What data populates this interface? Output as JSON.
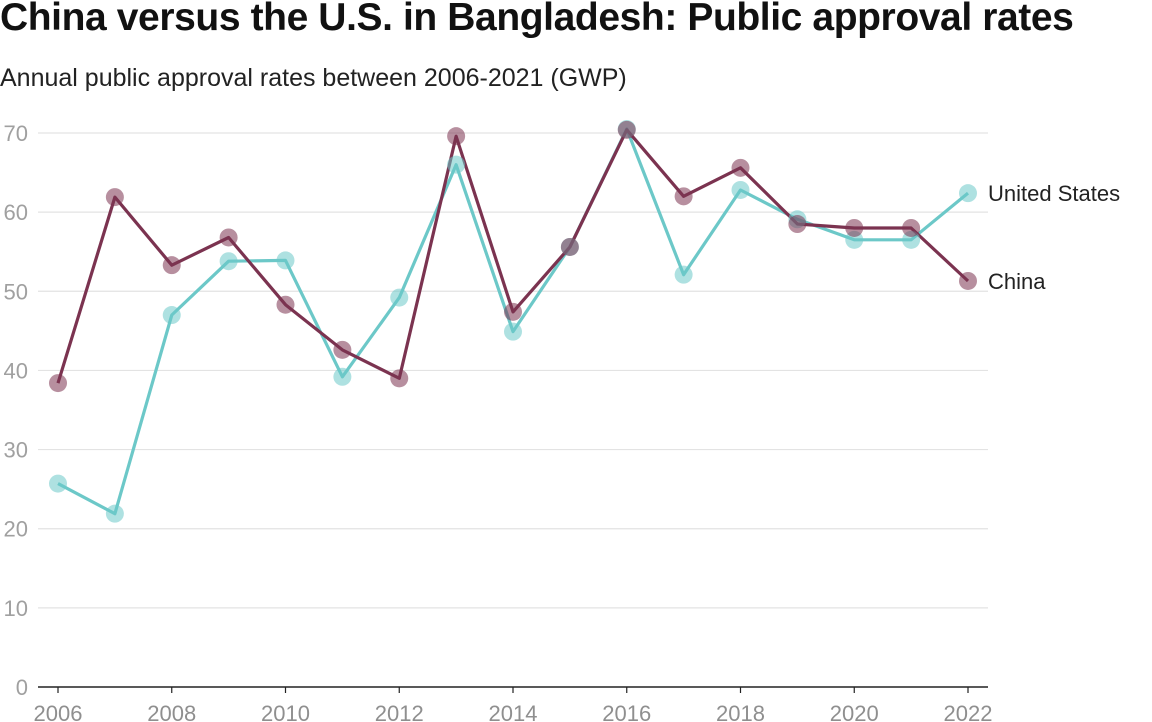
{
  "title": "China versus the U.S. in Bangladesh: Public approval rates",
  "subtitle": "Annual public approval rates between 2006-2021 (GWP)",
  "chart_data": {
    "type": "line",
    "x": [
      2006,
      2007,
      2008,
      2009,
      2010,
      2011,
      2012,
      2013,
      2014,
      2015,
      2016,
      2017,
      2018,
      2019,
      2020,
      2021,
      2022
    ],
    "series": [
      {
        "name": "United States",
        "color": "#6cc8c8",
        "values": [
          25.7,
          21.9,
          47.0,
          53.8,
          53.9,
          39.2,
          49.2,
          66.0,
          44.9,
          55.6,
          70.5,
          52.1,
          62.8,
          59.1,
          56.5,
          56.5,
          62.4
        ]
      },
      {
        "name": "China",
        "color": "#7b3350",
        "values": [
          38.4,
          61.9,
          53.3,
          56.8,
          48.3,
          42.6,
          39.0,
          69.6,
          47.4,
          55.6,
          70.4,
          62.0,
          65.6,
          58.5,
          58.0,
          58.0,
          51.3
        ]
      }
    ],
    "xticks": [
      "2006",
      "2008",
      "2010",
      "2012",
      "2014",
      "2016",
      "2018",
      "2020",
      "2022"
    ],
    "yticks": [
      "0",
      "10",
      "20",
      "30",
      "40",
      "50",
      "60",
      "70"
    ],
    "xlim": [
      2006,
      2022
    ],
    "ylim": [
      0,
      70
    ],
    "grid": true,
    "legend": "direct labels at right end of lines"
  }
}
